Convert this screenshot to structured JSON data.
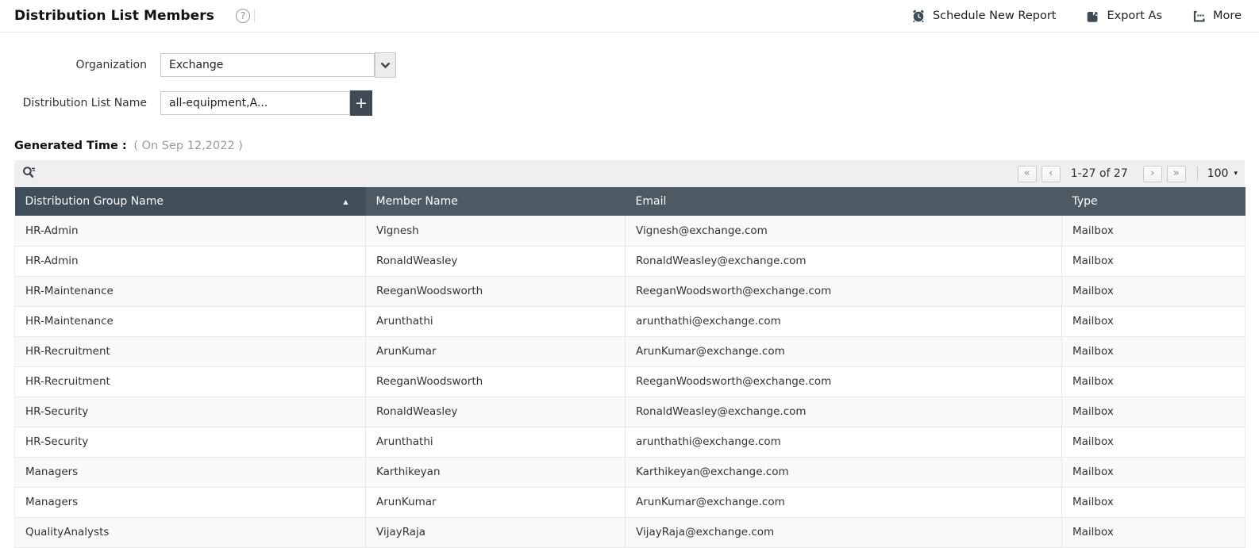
{
  "header": {
    "title": "Distribution List Members",
    "help": "?",
    "actions": {
      "schedule": "Schedule New Report",
      "export": "Export As",
      "more": "More"
    }
  },
  "filters": {
    "organization": {
      "label": "Organization",
      "value": "Exchange"
    },
    "distribution_list": {
      "label": "Distribution List Name",
      "value": "all-equipment,A...",
      "add_button": "+"
    }
  },
  "generated_time": {
    "label": "Generated Time :",
    "value": "( On Sep 12,2022 )"
  },
  "toolbar": {
    "pagination": {
      "first": "«",
      "prev": "‹",
      "range": "1-27 of 27",
      "next": "›",
      "last": "»",
      "page_size": "100",
      "dropdown_arrow": "▾"
    }
  },
  "table": {
    "columns": {
      "group": "Distribution Group Name",
      "member": "Member Name",
      "email": "Email",
      "type": "Type",
      "sort_indicator": "▲"
    },
    "rows": [
      {
        "group": "HR-Admin",
        "member": "Vignesh",
        "email": "Vignesh@exchange.com",
        "type": "Mailbox"
      },
      {
        "group": "HR-Admin",
        "member": "RonaldWeasley",
        "email": "RonaldWeasley@exchange.com",
        "type": "Mailbox"
      },
      {
        "group": "HR-Maintenance",
        "member": "ReeganWoodsworth",
        "email": "ReeganWoodsworth@exchange.com",
        "type": "Mailbox"
      },
      {
        "group": "HR-Maintenance",
        "member": "Arunthathi",
        "email": "arunthathi@exchange.com",
        "type": "Mailbox"
      },
      {
        "group": "HR-Recruitment",
        "member": "ArunKumar",
        "email": "ArunKumar@exchange.com",
        "type": "Mailbox"
      },
      {
        "group": "HR-Recruitment",
        "member": "ReeganWoodsworth",
        "email": "ReeganWoodsworth@exchange.com",
        "type": "Mailbox"
      },
      {
        "group": "HR-Security",
        "member": "RonaldWeasley",
        "email": "RonaldWeasley@exchange.com",
        "type": "Mailbox"
      },
      {
        "group": "HR-Security",
        "member": "Arunthathi",
        "email": "arunthathi@exchange.com",
        "type": "Mailbox"
      },
      {
        "group": "Managers",
        "member": "Karthikeyan",
        "email": "Karthikeyan@exchange.com",
        "type": "Mailbox"
      },
      {
        "group": "Managers",
        "member": "ArunKumar",
        "email": "ArunKumar@exchange.com",
        "type": "Mailbox"
      },
      {
        "group": "QualityAnalysts",
        "member": "VijayRaja",
        "email": "VijayRaja@exchange.com",
        "type": "Mailbox"
      }
    ]
  },
  "colors": {
    "header_sorted_column": "#404e59",
    "header_column": "#4d5a64",
    "accent_dark": "#3f4a54",
    "toolbar_bg": "#efefef",
    "row_alt": "#f9f9f9"
  }
}
